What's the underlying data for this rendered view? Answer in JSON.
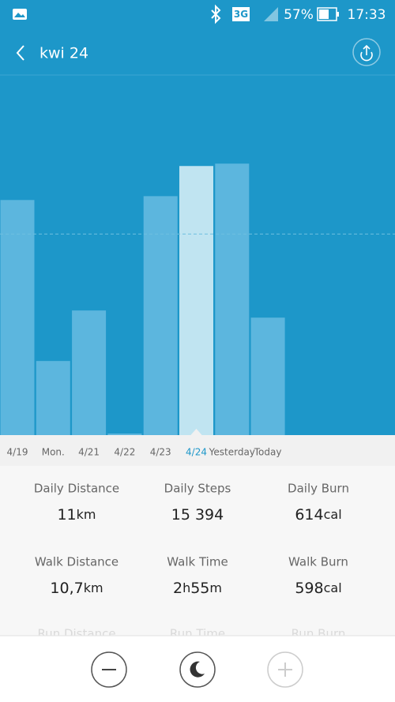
{
  "status_bar": {
    "network": "3G",
    "battery": "57%",
    "time": "17:33"
  },
  "header": {
    "title": "kwi 24"
  },
  "chart_data": {
    "type": "bar",
    "categories": [
      "4/19",
      "Mon.",
      "4/21",
      "4/22",
      "4/23",
      "4/24",
      "Yesterday",
      "Today"
    ],
    "values": [
      13450,
      4240,
      7130,
      90,
      13670,
      15394,
      15530,
      6720
    ],
    "selected": 5,
    "color": "#5cb6de",
    "selected_color": "#c0e4f1",
    "label_color": "#666666",
    "selected_label_color": "#1d97c9",
    "ylim": [
      0,
      20600
    ],
    "reference_line": 11500
  },
  "stats": [
    [
      {
        "label": "Daily Distance",
        "value": [
          "11",
          "km"
        ]
      },
      {
        "label": "Daily Steps",
        "value": [
          "15 394"
        ]
      },
      {
        "label": "Daily Burn",
        "value": [
          "614",
          "cal"
        ]
      }
    ],
    [
      {
        "label": "Walk Distance",
        "value": [
          "10,7",
          "km"
        ]
      },
      {
        "label": "Walk Time",
        "value": [
          "2",
          "h",
          "55",
          "m"
        ]
      },
      {
        "label": "Walk Burn",
        "value": [
          "598",
          "cal"
        ]
      }
    ],
    [
      {
        "label": "Run Distance"
      },
      {
        "label": "Run Time"
      },
      {
        "label": "Run Burn"
      }
    ]
  ]
}
